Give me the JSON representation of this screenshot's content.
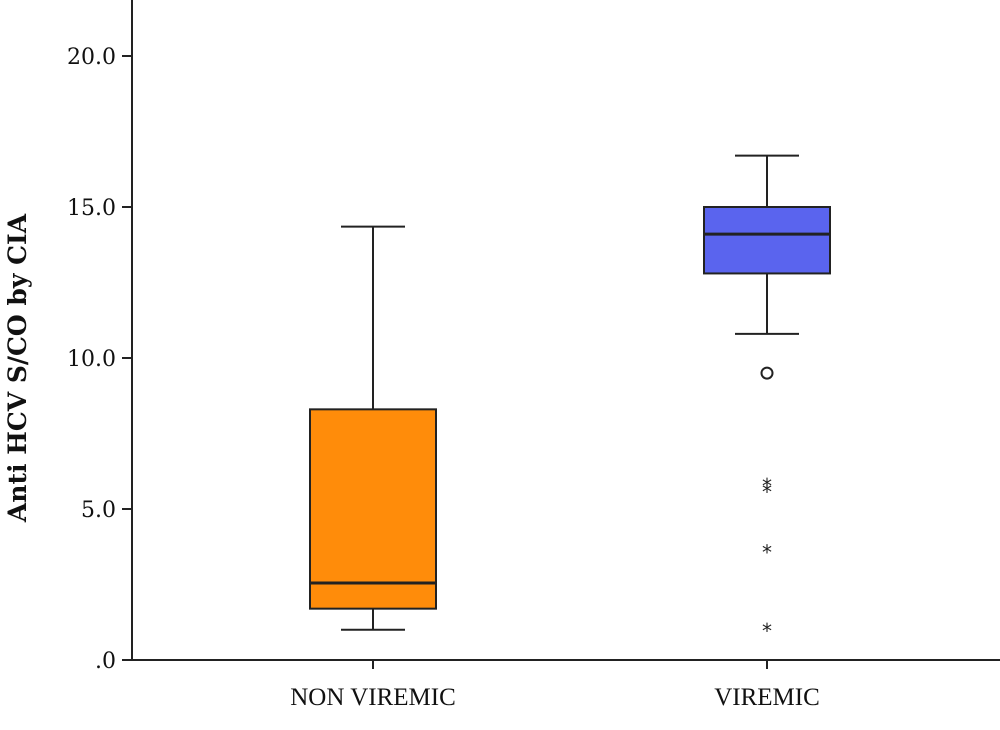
{
  "chart_data": {
    "type": "boxplot",
    "ylabel": "Anti HCV S/CO by CIA",
    "xlabel": "",
    "ylim": [
      0,
      22
    ],
    "yticks": [
      0,
      5,
      10,
      15,
      20
    ],
    "ytick_labels": [
      ".0",
      "5.0",
      "10.0",
      "15.0",
      "20.0"
    ],
    "categories": [
      "NON VIREMIC",
      "VIREMIC"
    ],
    "series": [
      {
        "category": "NON VIREMIC",
        "color": "#FF8C0A",
        "whisker_low": 1.0,
        "q1": 1.7,
        "median": 2.55,
        "q3": 8.3,
        "whisker_high": 14.35,
        "outliers": [],
        "extremes": []
      },
      {
        "category": "VIREMIC",
        "color": "#5A64EE",
        "whisker_low": 10.8,
        "q1": 12.8,
        "median": 14.1,
        "q3": 15.0,
        "whisker_high": 16.7,
        "outliers": [
          9.5
        ],
        "extremes": [
          5.8,
          5.6,
          3.6,
          1.0
        ]
      }
    ],
    "grid": false,
    "legend": "none"
  }
}
